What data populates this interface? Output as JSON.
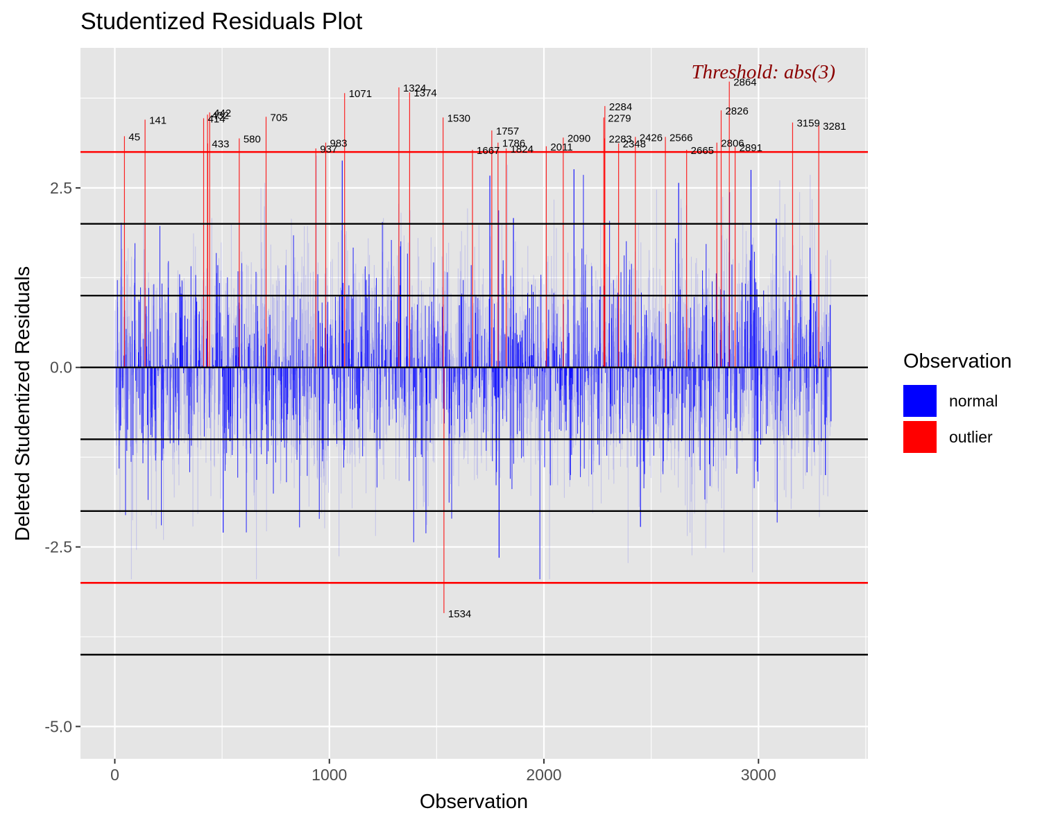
{
  "chart_data": {
    "type": "bar",
    "title": "Studentized Residuals Plot",
    "xlabel": "Observation",
    "ylabel": "Deleted Studentized Residuals",
    "xlim": [
      -160,
      3510
    ],
    "ylim": [
      -5.45,
      4.45
    ],
    "xticks": [
      0,
      1000,
      2000,
      3000
    ],
    "xtick_labels": [
      "0",
      "1000",
      "2000",
      "3000"
    ],
    "yticks": [
      -5.0,
      -2.5,
      0.0,
      2.5
    ],
    "ytick_labels": [
      "-5.0",
      "-2.5",
      "0.0",
      "2.5"
    ],
    "grid": true,
    "n_observations": 3338,
    "threshold": 3,
    "threshold_label": "Threshold: abs(3)",
    "reference_lines": [
      2,
      1,
      0,
      -1,
      -2,
      -4
    ],
    "legend": {
      "title": "Observation",
      "position": "right",
      "entries": [
        {
          "label": "normal",
          "color": "#0000ff"
        },
        {
          "label": "outlier",
          "color": "#ff0000"
        }
      ]
    },
    "colors": {
      "normal": "#0000ff",
      "outlier": "#ff0000",
      "threshold": "#ff0000",
      "reference": "#000000",
      "annotation": "#8b0000",
      "panel": "#e5e5e5"
    },
    "outliers": [
      {
        "obs": 45,
        "value": 3.22,
        "label": "45"
      },
      {
        "obs": 141,
        "value": 3.45,
        "label": "141"
      },
      {
        "obs": 414,
        "value": 3.47,
        "label": "414"
      },
      {
        "obs": 432,
        "value": 3.52,
        "label": "432"
      },
      {
        "obs": 442,
        "value": 3.55,
        "label": "442"
      },
      {
        "obs": 433,
        "value": 3.12,
        "label": "433"
      },
      {
        "obs": 580,
        "value": 3.19,
        "label": "580"
      },
      {
        "obs": 705,
        "value": 3.49,
        "label": "705"
      },
      {
        "obs": 937,
        "value": 3.05,
        "label": "937"
      },
      {
        "obs": 983,
        "value": 3.13,
        "label": "983"
      },
      {
        "obs": 1071,
        "value": 3.82,
        "label": "1071"
      },
      {
        "obs": 1324,
        "value": 3.9,
        "label": "1324"
      },
      {
        "obs": 1374,
        "value": 3.83,
        "label": "1374"
      },
      {
        "obs": 1530,
        "value": 3.48,
        "label": "1530"
      },
      {
        "obs": 1534,
        "value": -3.42,
        "label": "1534"
      },
      {
        "obs": 1667,
        "value": 3.03,
        "label": "1667"
      },
      {
        "obs": 1757,
        "value": 3.3,
        "label": "1757"
      },
      {
        "obs": 1786,
        "value": 3.13,
        "label": "1786"
      },
      {
        "obs": 1824,
        "value": 3.05,
        "label": "1824"
      },
      {
        "obs": 2011,
        "value": 3.08,
        "label": "2011"
      },
      {
        "obs": 2090,
        "value": 3.2,
        "label": "2090"
      },
      {
        "obs": 2279,
        "value": 3.48,
        "label": "2279"
      },
      {
        "obs": 2284,
        "value": 3.64,
        "label": "2284"
      },
      {
        "obs": 2283,
        "value": 3.19,
        "label": "2283"
      },
      {
        "obs": 2348,
        "value": 3.12,
        "label": "2348"
      },
      {
        "obs": 2426,
        "value": 3.21,
        "label": "2426"
      },
      {
        "obs": 2566,
        "value": 3.21,
        "label": "2566"
      },
      {
        "obs": 2665,
        "value": 3.03,
        "label": "2665"
      },
      {
        "obs": 2806,
        "value": 3.13,
        "label": "2806"
      },
      {
        "obs": 2826,
        "value": 3.58,
        "label": "2826"
      },
      {
        "obs": 2864,
        "value": 3.98,
        "label": "2864"
      },
      {
        "obs": 2891,
        "value": 3.07,
        "label": "2891"
      },
      {
        "obs": 3159,
        "value": 3.41,
        "label": "3159"
      },
      {
        "obs": 3281,
        "value": 3.37,
        "label": "3281"
      }
    ],
    "notable_normal": [
      {
        "obs": 1791,
        "value": -2.65
      },
      {
        "obs": 1060,
        "value": 2.88
      },
      {
        "obs": 505,
        "value": -2.3
      },
      {
        "obs": 1748,
        "value": 2.67
      },
      {
        "obs": 1858,
        "value": 2.08
      },
      {
        "obs": 2140,
        "value": 2.76
      },
      {
        "obs": 2450,
        "value": -2.22
      },
      {
        "obs": 2965,
        "value": 2.75
      },
      {
        "obs": 2628,
        "value": 2.57
      },
      {
        "obs": 2865,
        "value": 2.44
      },
      {
        "obs": 3083,
        "value": 2.07
      },
      {
        "obs": 3312,
        "value": -1.5
      },
      {
        "obs": 3334,
        "value": 0.87
      },
      {
        "obs": 3338,
        "value": -0.75
      }
    ]
  }
}
